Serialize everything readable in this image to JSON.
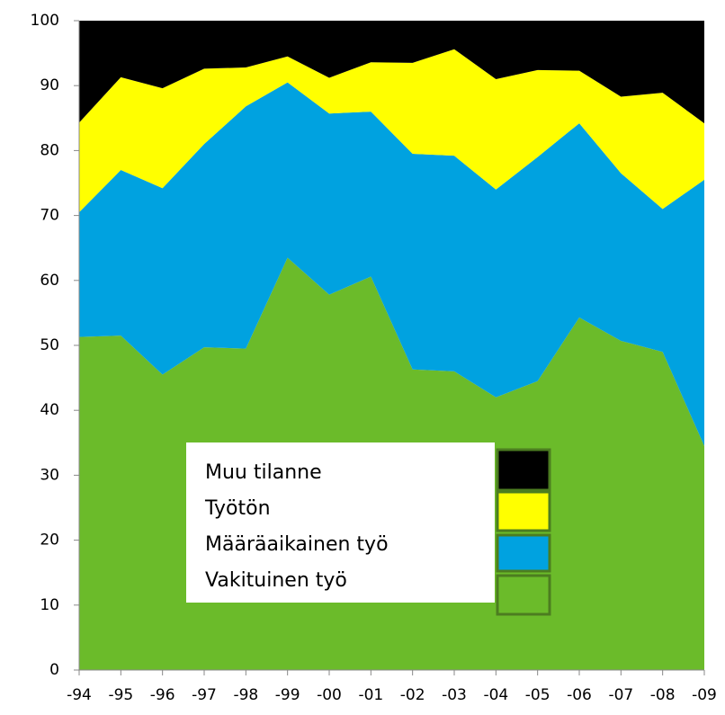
{
  "chart_data": {
    "type": "stacked_area",
    "categories": [
      "-94",
      "-95",
      "-96",
      "-97",
      "-98",
      "-99",
      "-00",
      "-01",
      "-02",
      "-03",
      "-04",
      "-05",
      "-06",
      "-07",
      "-08",
      "-09"
    ],
    "series": [
      {
        "name": "Vakituinen työ",
        "color": "#6bbb2a",
        "values": [
          51.3,
          51.5,
          45.5,
          49.7,
          49.5,
          63.5,
          57.8,
          60.6,
          46.3,
          46,
          42,
          44.5,
          54.3,
          50.7,
          49,
          34.5
        ]
      },
      {
        "name": "Määräaikainen työ",
        "color": "#00a2e0",
        "values": [
          19.2,
          25.5,
          28.7,
          31.3,
          37.3,
          27,
          27.9,
          25.4,
          33.2,
          33.2,
          32,
          34.5,
          29.9,
          25.8,
          22,
          41
        ]
      },
      {
        "name": "Työtön",
        "color": "#ffff00",
        "values": [
          13.8,
          14.3,
          15.4,
          11.6,
          6,
          4,
          5.5,
          7.6,
          14,
          16.4,
          17,
          13.4,
          8.1,
          11.8,
          17.9,
          8.7
        ]
      },
      {
        "name": "Muu tilanne",
        "color": "#000000",
        "values": [
          15.7,
          8.7,
          10.4,
          7.4,
          7.2,
          5.5,
          8.8,
          6.4,
          6.5,
          4.4,
          9,
          7.6,
          7.7,
          11.7,
          11.1,
          15.8
        ]
      }
    ],
    "ylim": [
      0,
      100
    ],
    "yticks": [
      0,
      10,
      20,
      30,
      40,
      50,
      60,
      70,
      80,
      90,
      100
    ]
  }
}
